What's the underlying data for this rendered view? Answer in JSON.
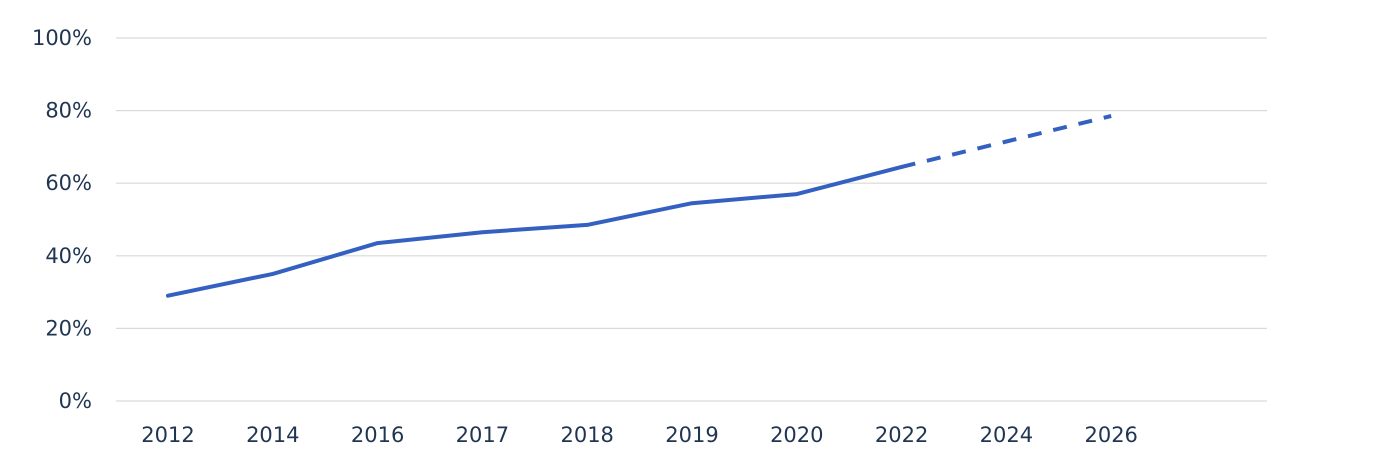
{
  "chart_data": {
    "type": "line",
    "title": "",
    "xlabel": "",
    "ylabel": "",
    "categories": [
      "2012",
      "2014",
      "2016",
      "2017",
      "2018",
      "2019",
      "2020",
      "2022",
      "2024",
      "2026"
    ],
    "y_ticks": [
      "0%",
      "20%",
      "40%",
      "60%",
      "80%",
      "100%"
    ],
    "ylim": [
      0,
      100
    ],
    "grid": true,
    "legend": "none",
    "series": [
      {
        "values": [
          29,
          35,
          43.5,
          46.5,
          48.5,
          54.5,
          57,
          64.5,
          null,
          null
        ],
        "style": "solid",
        "color": "#3461c1"
      },
      {
        "values": [
          null,
          null,
          null,
          null,
          null,
          null,
          null,
          64.5,
          71.5,
          78.5
        ],
        "style": "dashed",
        "color": "#3461c1"
      }
    ]
  }
}
